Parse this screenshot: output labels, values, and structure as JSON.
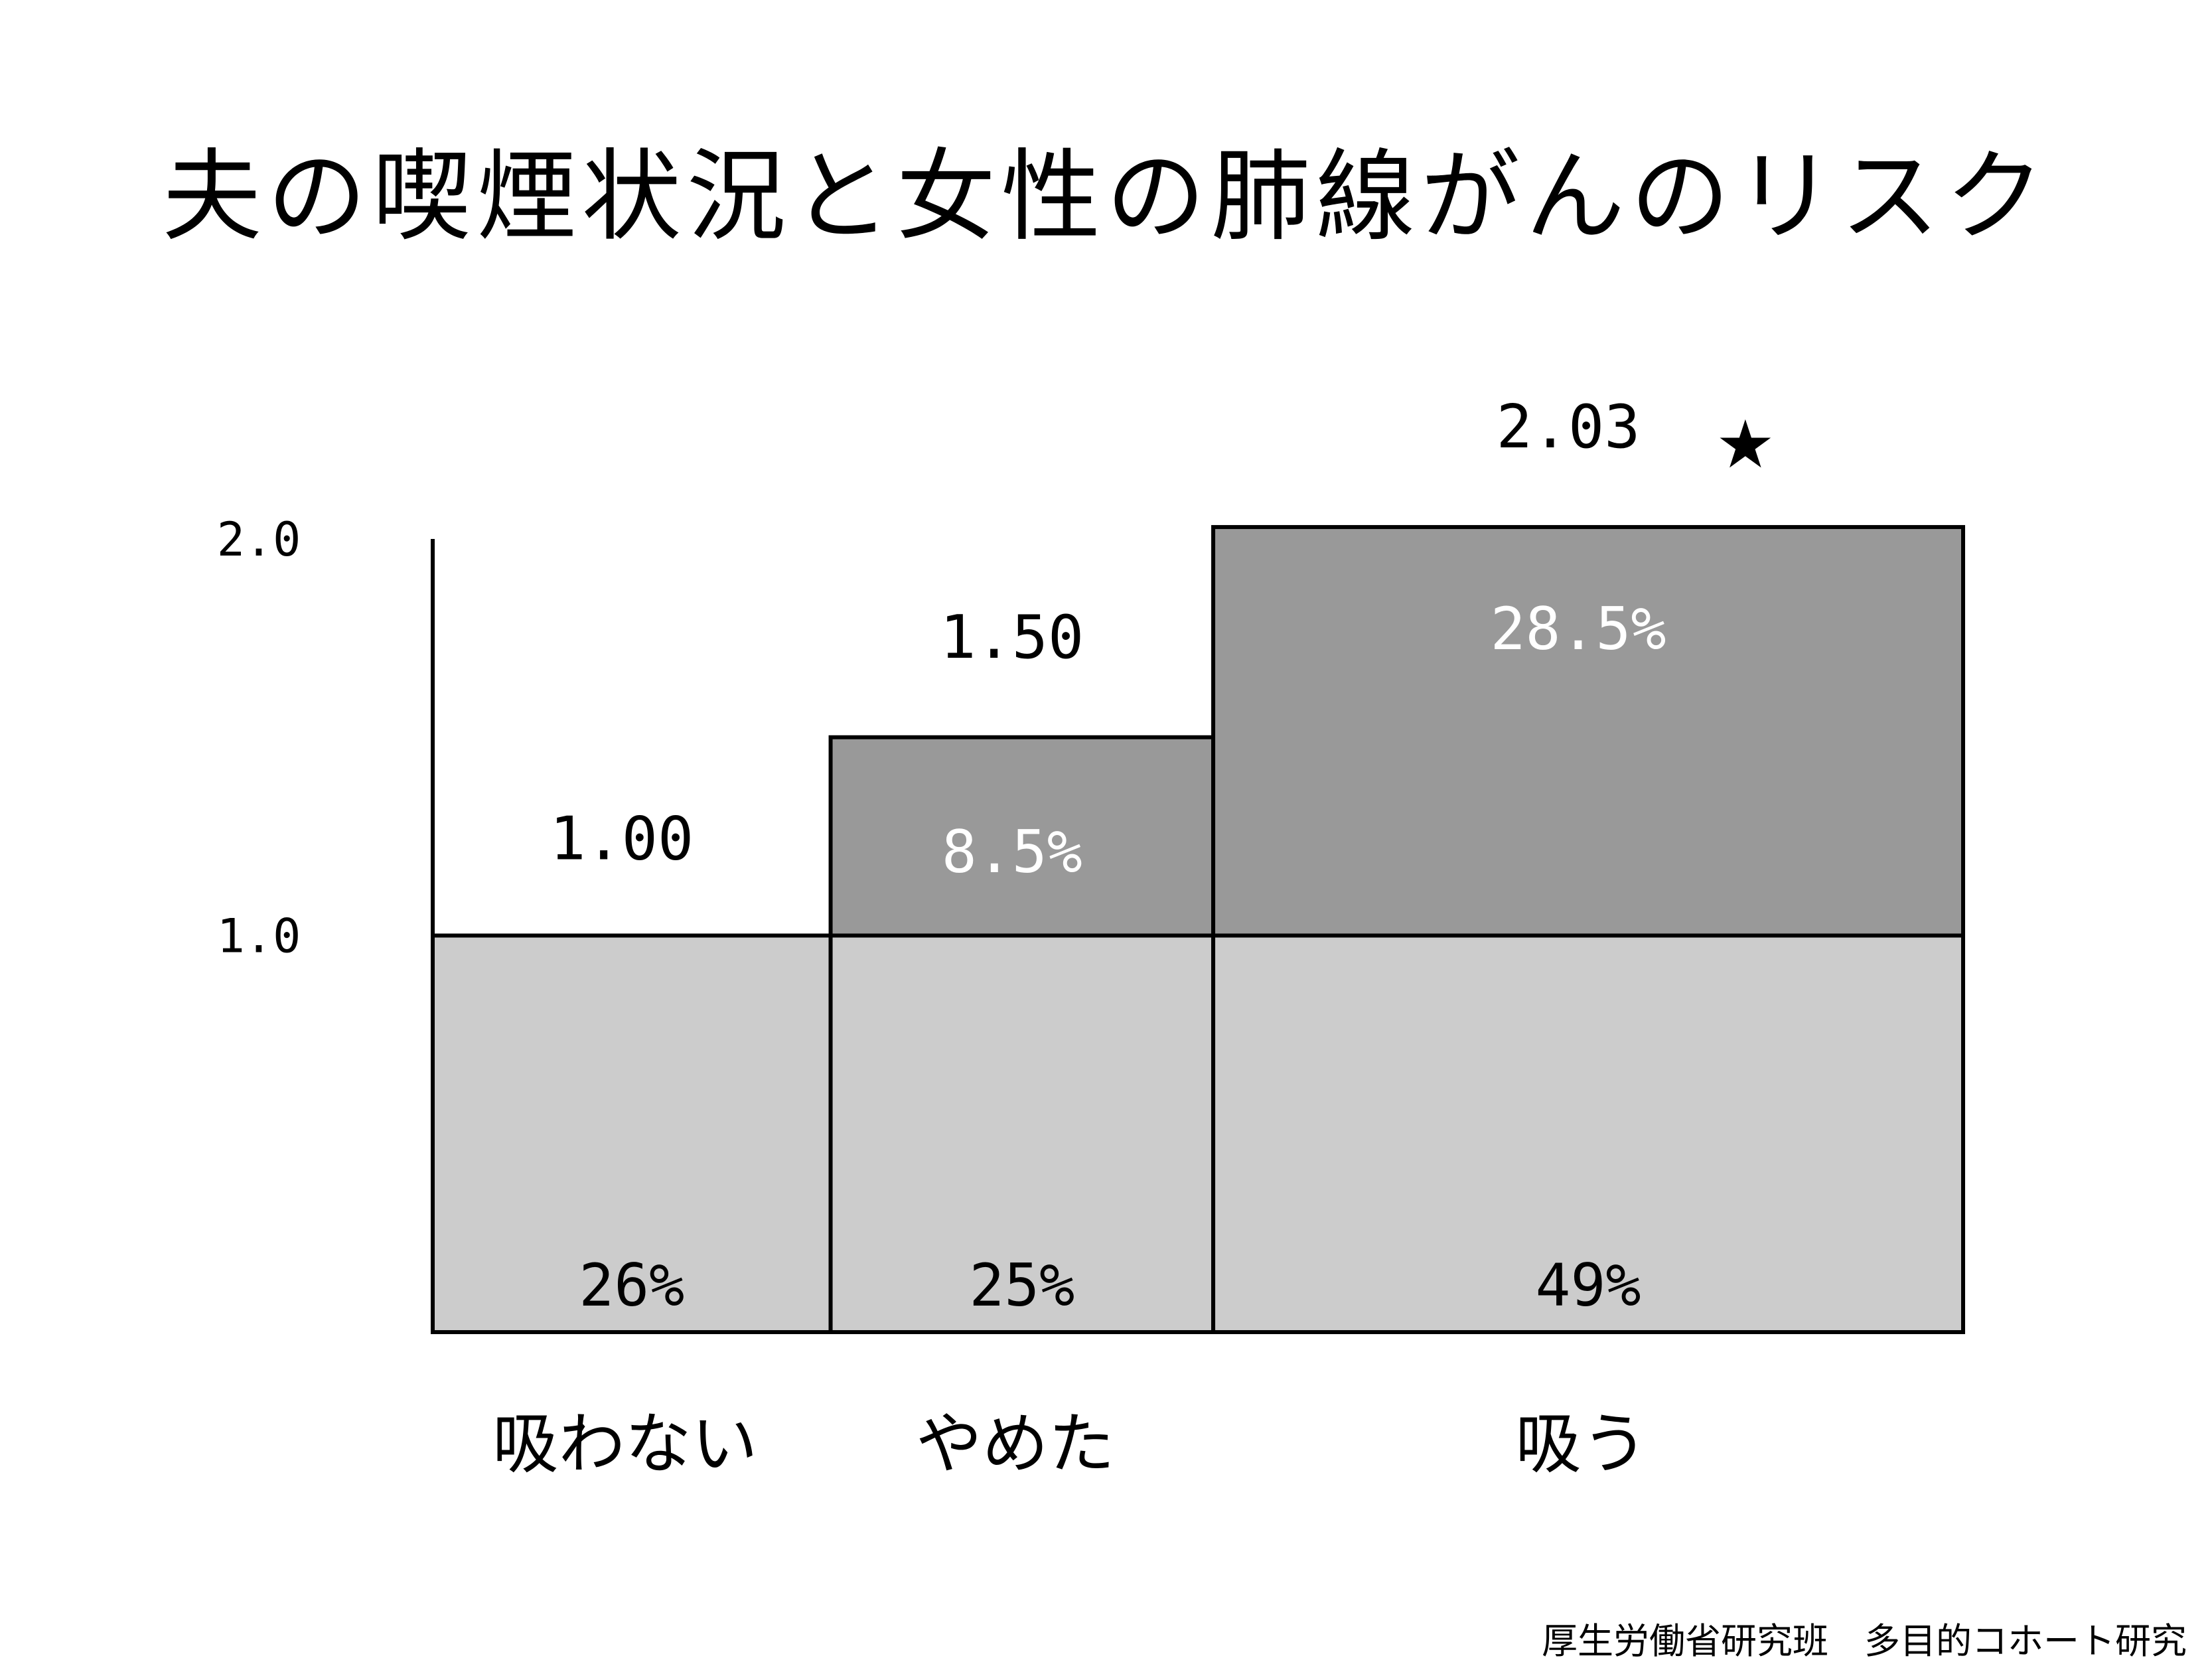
{
  "chart_data": {
    "type": "bar",
    "title": "夫の喫煙状況と女性の肺線がんのリスク",
    "categories": [
      "吸わない",
      "やめた",
      "吸う"
    ],
    "category_widths_pct": [
      26,
      25,
      49
    ],
    "width_labels": [
      "26%",
      "25%",
      "49%"
    ],
    "values": [
      1.0,
      1.5,
      2.03
    ],
    "value_labels": [
      "1.00",
      "1.50",
      "2.03"
    ],
    "excess_labels": [
      "",
      "8.5%",
      "28.5%"
    ],
    "significance_marker": [
      "",
      "",
      "★"
    ],
    "baseline": 1.0,
    "y_ticks": [
      1.0,
      2.0
    ],
    "y_tick_labels": [
      "1.0",
      "2.0"
    ],
    "ylim": [
      0,
      2.0
    ],
    "xlabel": "",
    "ylabel": "",
    "grid": false,
    "legend": "none",
    "colors": {
      "baseline_fill": "#cccccc",
      "excess_fill": "#999999",
      "stroke": "#000000",
      "excess_text": "#ffffff",
      "text": "#000000"
    }
  },
  "footer": {
    "source": "厚生労働省研究班　多目的コホート研究"
  }
}
